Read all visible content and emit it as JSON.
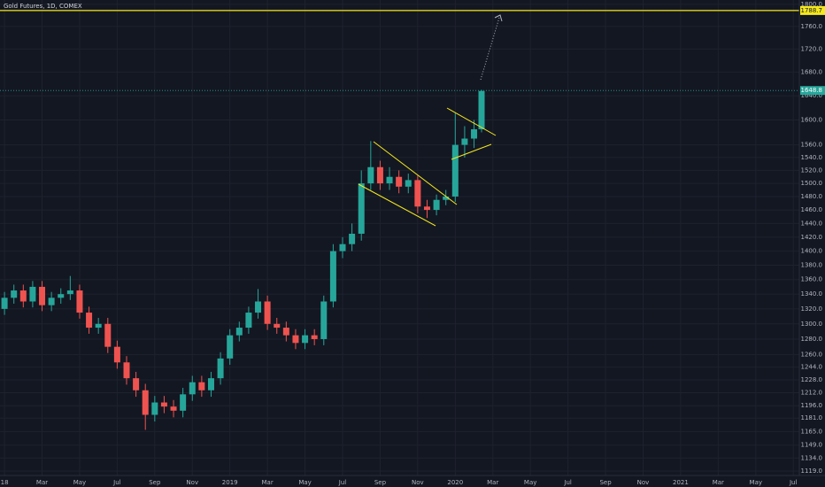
{
  "chart_data": {
    "type": "candlestick",
    "title": "Gold Futures, 1D, COMEX",
    "x": [
      0,
      0.5,
      1,
      1.5,
      2,
      2.5,
      3,
      3.5,
      4,
      4.5,
      5,
      5.5,
      6,
      6.5,
      7,
      7.5,
      8,
      8.5,
      9,
      9.5,
      10,
      10.5,
      11,
      11.5,
      12,
      12.5,
      13,
      13.5,
      14,
      14.5,
      15,
      15.5,
      16,
      16.5,
      17,
      17.5,
      18,
      18.5,
      19,
      19.5,
      20,
      20.5,
      21,
      21.5,
      22,
      22.5,
      23,
      23.5,
      24,
      24.5,
      25,
      25.4
    ],
    "open": [
      1320,
      1335,
      1345,
      1330,
      1350,
      1325,
      1335,
      1340,
      1345,
      1315,
      1295,
      1300,
      1270,
      1250,
      1230,
      1215,
      1185,
      1200,
      1195,
      1190,
      1210,
      1225,
      1215,
      1230,
      1255,
      1285,
      1295,
      1315,
      1330,
      1300,
      1295,
      1285,
      1275,
      1285,
      1280,
      1330,
      1400,
      1410,
      1425,
      1500,
      1525,
      1500,
      1510,
      1495,
      1505,
      1465,
      1460,
      1475,
      1480,
      1560,
      1570,
      1585
    ],
    "high": [
      1343,
      1353,
      1353,
      1358,
      1358,
      1343,
      1348,
      1365,
      1353,
      1323,
      1308,
      1308,
      1278,
      1258,
      1238,
      1223,
      1208,
      1208,
      1203,
      1218,
      1233,
      1233,
      1238,
      1263,
      1293,
      1303,
      1323,
      1347,
      1338,
      1308,
      1303,
      1293,
      1293,
      1293,
      1338,
      1410,
      1420,
      1440,
      1520,
      1566,
      1535,
      1525,
      1520,
      1515,
      1512,
      1475,
      1483,
      1490,
      1611,
      1590,
      1600,
      1650
    ],
    "low": [
      1312,
      1327,
      1322,
      1322,
      1317,
      1317,
      1327,
      1332,
      1307,
      1287,
      1287,
      1262,
      1242,
      1222,
      1207,
      1167,
      1177,
      1187,
      1182,
      1182,
      1202,
      1207,
      1207,
      1222,
      1247,
      1277,
      1287,
      1307,
      1292,
      1287,
      1277,
      1267,
      1267,
      1272,
      1272,
      1322,
      1390,
      1400,
      1415,
      1490,
      1490,
      1490,
      1485,
      1485,
      1455,
      1448,
      1452,
      1467,
      1472,
      1540,
      1555,
      1580
    ],
    "close": [
      1335,
      1345,
      1330,
      1350,
      1325,
      1335,
      1340,
      1345,
      1315,
      1295,
      1300,
      1270,
      1250,
      1230,
      1215,
      1185,
      1200,
      1195,
      1190,
      1210,
      1225,
      1215,
      1230,
      1255,
      1285,
      1295,
      1315,
      1330,
      1300,
      1295,
      1285,
      1275,
      1285,
      1280,
      1330,
      1400,
      1410,
      1425,
      1500,
      1525,
      1500,
      1510,
      1495,
      1505,
      1465,
      1460,
      1475,
      1480,
      1560,
      1570,
      1585,
      1648
    ],
    "up_color": "#26a69a",
    "down_color": "#ef5350",
    "xlim": [
      -0.24,
      42.32
    ],
    "xticks": [
      {
        "value": 0,
        "label": "18"
      },
      {
        "value": 2,
        "label": "Mar"
      },
      {
        "value": 4,
        "label": "May"
      },
      {
        "value": 6,
        "label": "Jul"
      },
      {
        "value": 8,
        "label": "Sep"
      },
      {
        "value": 10,
        "label": "Nov"
      },
      {
        "value": 12,
        "label": "2019"
      },
      {
        "value": 14,
        "label": "Mar"
      },
      {
        "value": 16,
        "label": "May"
      },
      {
        "value": 18,
        "label": "Jul"
      },
      {
        "value": 20,
        "label": "Sep"
      },
      {
        "value": 22,
        "label": "Nov"
      },
      {
        "value": 24,
        "label": "2020"
      },
      {
        "value": 26,
        "label": "Mar"
      },
      {
        "value": 28,
        "label": "May"
      },
      {
        "value": 30,
        "label": "Jul"
      },
      {
        "value": 32,
        "label": "Sep"
      },
      {
        "value": 34,
        "label": "Nov"
      },
      {
        "value": 36,
        "label": "2021"
      },
      {
        "value": 38,
        "label": "Mar"
      },
      {
        "value": 40,
        "label": "May"
      },
      {
        "value": 42,
        "label": "Jul"
      }
    ],
    "ylim": [
      1114,
      1808
    ],
    "log_scale": true,
    "yticks": [
      {
        "value": 1800,
        "label": "1800.0"
      },
      {
        "value": 1760,
        "label": "1760.0"
      },
      {
        "value": 1720,
        "label": "1720.0"
      },
      {
        "value": 1680,
        "label": "1680.0"
      },
      {
        "value": 1640,
        "label": "1640.0"
      },
      {
        "value": 1600,
        "label": "1600.0"
      },
      {
        "value": 1560,
        "label": "1560.0"
      },
      {
        "value": 1540,
        "label": "1540.0"
      },
      {
        "value": 1520,
        "label": "1520.0"
      },
      {
        "value": 1500,
        "label": "1500.0"
      },
      {
        "value": 1480,
        "label": "1480.0"
      },
      {
        "value": 1460,
        "label": "1460.0"
      },
      {
        "value": 1440,
        "label": "1440.0"
      },
      {
        "value": 1420,
        "label": "1420.0"
      },
      {
        "value": 1400,
        "label": "1400.0"
      },
      {
        "value": 1380,
        "label": "1380.0"
      },
      {
        "value": 1360,
        "label": "1360.0"
      },
      {
        "value": 1340,
        "label": "1340.0"
      },
      {
        "value": 1320,
        "label": "1320.0"
      },
      {
        "value": 1300,
        "label": "1300.0"
      },
      {
        "value": 1280,
        "label": "1280.0"
      },
      {
        "value": 1260,
        "label": "1260.0"
      },
      {
        "value": 1244,
        "label": "1244.0"
      },
      {
        "value": 1228,
        "label": "1228.0"
      },
      {
        "value": 1212,
        "label": "1212.0"
      },
      {
        "value": 1196,
        "label": "1196.0"
      },
      {
        "value": 1181,
        "label": "1181.0"
      },
      {
        "value": 1165,
        "label": "1165.0"
      },
      {
        "value": 1149,
        "label": "1149.0"
      },
      {
        "value": 1134,
        "label": "1134.0"
      },
      {
        "value": 1119,
        "label": "1119.0"
      }
    ],
    "grid": true,
    "price_lines": [
      {
        "value": 1788.7,
        "color": "#f5e81c"
      },
      {
        "value": 1648.8,
        "color": "#26a69a"
      }
    ]
  }
}
